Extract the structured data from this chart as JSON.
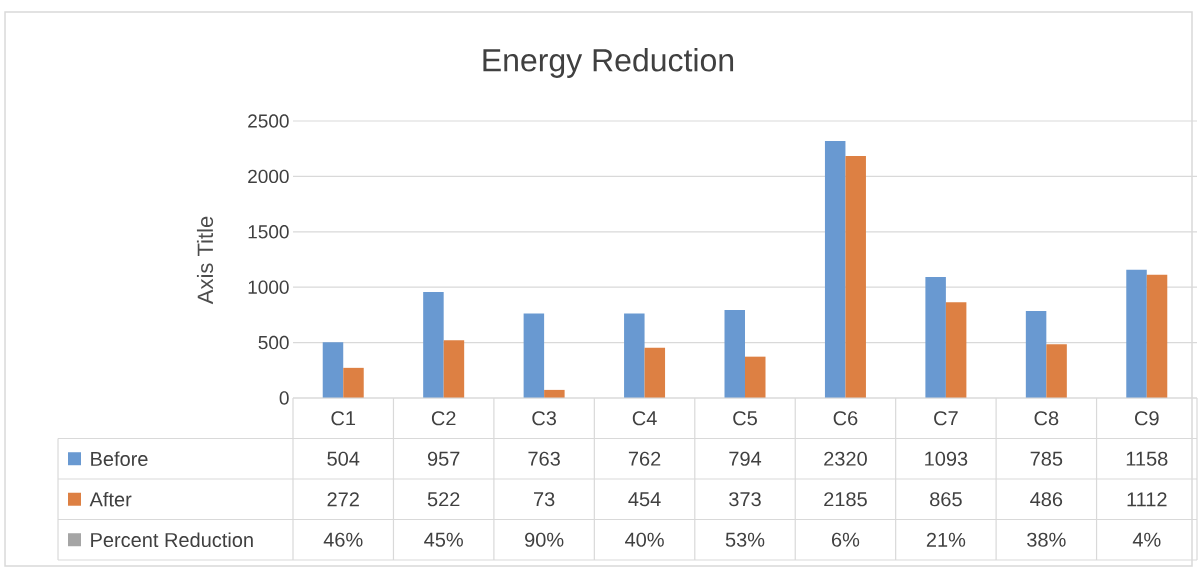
{
  "chart_data": {
    "type": "bar",
    "title": "Energy Reduction",
    "ylabel": "Axis Title",
    "categories": [
      "C1",
      "C2",
      "C3",
      "C4",
      "C5",
      "C6",
      "C7",
      "C8",
      "C9"
    ],
    "series": [
      {
        "name": "Before",
        "color": "#6999d1",
        "values": [
          504,
          957,
          763,
          762,
          794,
          2320,
          1093,
          785,
          1158
        ]
      },
      {
        "name": "After",
        "color": "#dd8043",
        "values": [
          272,
          522,
          73,
          454,
          373,
          2185,
          865,
          486,
          1112
        ]
      },
      {
        "name": "Percent Reduction",
        "color": "#a5a5a5",
        "values": [
          null,
          null,
          null,
          null,
          null,
          null,
          null,
          null,
          null
        ],
        "value_labels": [
          "46%",
          "45%",
          "90%",
          "40%",
          "53%",
          "6%",
          "21%",
          "38%",
          "4%"
        ]
      }
    ],
    "ylim": [
      0,
      2500
    ],
    "yticks": [
      0,
      500,
      1000,
      1500,
      2000,
      2500
    ],
    "grid": "y",
    "legend": "bottom",
    "data_labels": true
  }
}
